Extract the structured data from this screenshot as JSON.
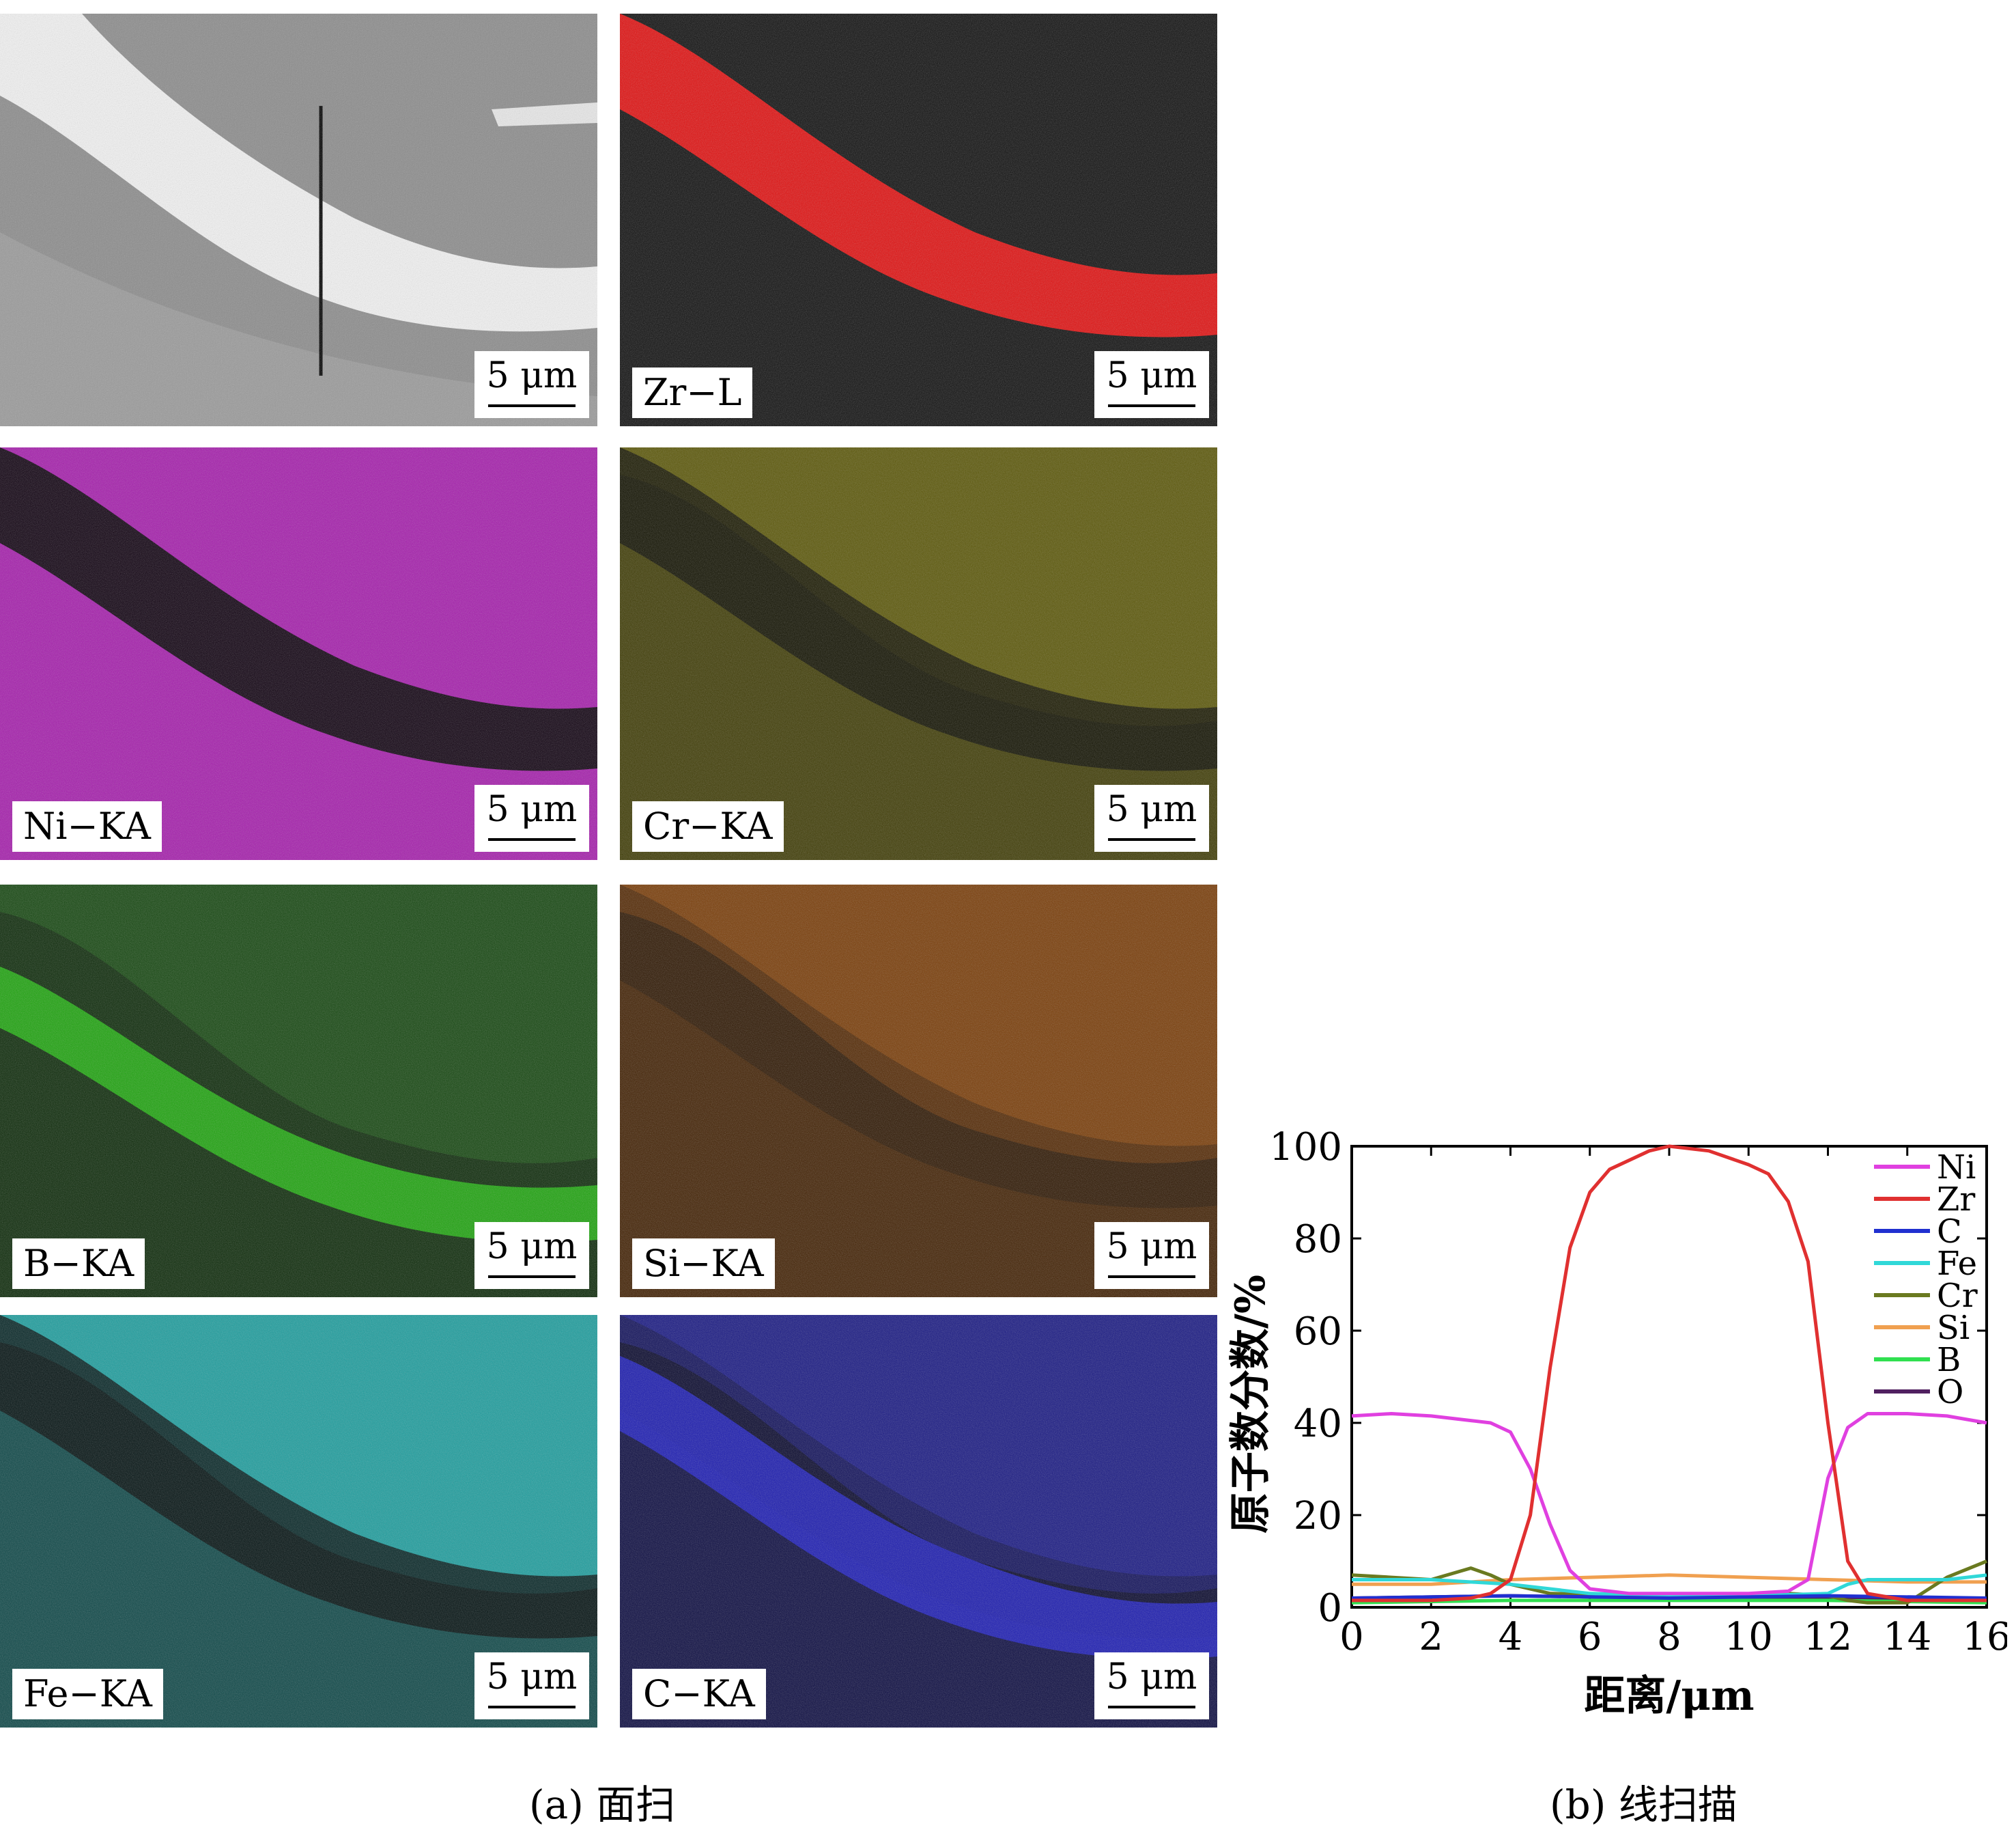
{
  "maps": [
    {
      "label": "",
      "scale": "5 μm",
      "color": "#b8b8b8"
    },
    {
      "label": "Zr−L",
      "scale": "5 μm",
      "color": "#e01010"
    },
    {
      "label": "Ni−KA",
      "scale": "5 μm",
      "color": "#c020c8"
    },
    {
      "label": "Cr−KA",
      "scale": "5 μm",
      "color": "#b8b000"
    },
    {
      "label": "B−KA",
      "scale": "5 μm",
      "color": "#20b010"
    },
    {
      "label": "Si−KA",
      "scale": "5 μm",
      "color": "#d06000"
    },
    {
      "label": "Fe−KA",
      "scale": "5 μm",
      "color": "#20c0c0"
    },
    {
      "label": "C−KA",
      "scale": "5 μm",
      "color": "#2020d0"
    }
  ],
  "captions": {
    "a": "(a) 面扫",
    "b": "(b) 线扫描"
  },
  "chart_data": {
    "type": "line",
    "xlabel": "距离/μm",
    "ylabel": "原子数分数/%",
    "xlim": [
      0,
      16
    ],
    "ylim": [
      0,
      100
    ],
    "xticks": [
      "0",
      "2",
      "4",
      "6",
      "8",
      "10",
      "12",
      "14",
      "16"
    ],
    "yticks": [
      "0",
      "20",
      "40",
      "60",
      "80",
      "100"
    ],
    "legend_position": "top-right",
    "grid": false,
    "series": [
      {
        "name": "Ni",
        "color": "#e040e0",
        "x": [
          0,
          1,
          2,
          3,
          3.5,
          4,
          4.5,
          5,
          5.5,
          6,
          7,
          8,
          9,
          10,
          11,
          11.5,
          12,
          12.5,
          13,
          14,
          15,
          16
        ],
        "y": [
          41.5,
          42,
          41.5,
          40.5,
          40,
          38,
          30,
          18,
          8,
          4,
          3,
          3,
          3,
          3,
          3.5,
          6,
          28,
          39,
          42,
          42,
          41.5,
          40
        ]
      },
      {
        "name": "Zr",
        "color": "#e03030",
        "x": [
          0,
          2,
          3,
          3.5,
          4,
          4.5,
          5,
          5.5,
          6,
          6.5,
          7,
          7.5,
          8,
          9,
          10,
          10.5,
          11,
          11.5,
          12,
          12.5,
          13,
          14,
          16
        ],
        "y": [
          1.5,
          1.5,
          2,
          3,
          6,
          20,
          52,
          78,
          90,
          95,
          97,
          99,
          100,
          99,
          96,
          94,
          88,
          75,
          40,
          10,
          3,
          1.5,
          1.5
        ]
      },
      {
        "name": "C",
        "color": "#2030d0",
        "x": [
          0,
          4,
          8,
          12,
          16
        ],
        "y": [
          2,
          2.5,
          2,
          2.5,
          2
        ]
      },
      {
        "name": "Fe",
        "color": "#30d8d8",
        "x": [
          0,
          2,
          4,
          6,
          8,
          10,
          12,
          12.5,
          13,
          14,
          15,
          16
        ],
        "y": [
          6,
          6,
          5,
          3,
          2.5,
          2.5,
          3,
          5,
          6,
          6,
          6,
          7
        ]
      },
      {
        "name": "Cr",
        "color": "#6a7a20",
        "x": [
          0,
          1,
          2,
          3,
          3.5,
          4,
          5,
          8,
          11,
          12,
          12.5,
          13,
          14,
          15,
          16
        ],
        "y": [
          7,
          6.5,
          6,
          8.5,
          7,
          5,
          3,
          2.5,
          3,
          2.5,
          1.5,
          1,
          1,
          6.5,
          10
        ]
      },
      {
        "name": "Si",
        "color": "#f0a050",
        "x": [
          0,
          2,
          4,
          6,
          8,
          10,
          12,
          14,
          16
        ],
        "y": [
          5,
          5,
          6,
          6.5,
          7,
          6.5,
          6,
          5.5,
          5.5
        ]
      },
      {
        "name": "B",
        "color": "#30e050",
        "x": [
          0,
          4,
          8,
          12,
          16
        ],
        "y": [
          1,
          1.5,
          1.5,
          1.5,
          1
        ]
      },
      {
        "name": "O",
        "color": "#502060",
        "x": [
          0,
          4,
          8,
          12,
          16
        ],
        "y": [
          2,
          2.5,
          2,
          2,
          2
        ]
      }
    ]
  }
}
